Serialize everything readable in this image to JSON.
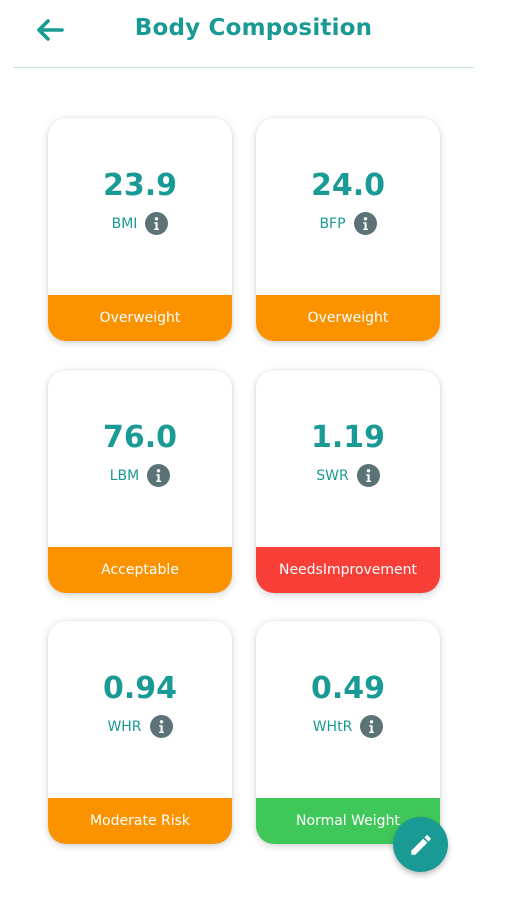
{
  "header": {
    "title": "Body Composition",
    "back_icon": "arrow-left-icon",
    "accent": "#1a9a94"
  },
  "cards": [
    {
      "value": "23.9",
      "label": "BMI",
      "status": "Overweight",
      "status_color": "#fb9200"
    },
    {
      "value": "24.0",
      "label": "BFP",
      "status": "Overweight",
      "status_color": "#fb9200"
    },
    {
      "value": "76.0",
      "label": "LBM",
      "status": "Acceptable",
      "status_color": "#fb9200"
    },
    {
      "value": "1.19",
      "label": "SWR",
      "status": "NeedsImprovement",
      "status_color": "#f73e37"
    },
    {
      "value": "0.94",
      "label": "WHR",
      "status": "Moderate Risk",
      "status_color": "#fb9200"
    },
    {
      "value": "0.49",
      "label": "WHtR",
      "status": "Normal Weight",
      "status_color": "#3fc75a"
    }
  ],
  "fab": {
    "icon": "pencil-icon"
  }
}
